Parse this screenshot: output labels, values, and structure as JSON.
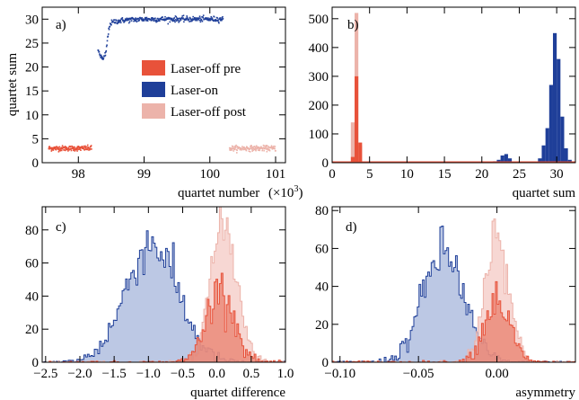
{
  "colors": {
    "laser_off_pre": "#e8523a",
    "laser_on": "#1f3f99",
    "laser_off_post": "#ecb3aa",
    "on_fill": "#9fb0d8",
    "pre_fill": "#e87b66",
    "post_fill": "#f3c6c0"
  },
  "chart_data": [
    {
      "panel": "a)",
      "type": "scatter",
      "xlabel": "quartet number",
      "xlabel_unit": "(×10",
      "xlabel_exp": "3",
      "xlabel_close": ")",
      "ylabel": "quartet sum",
      "xlim": [
        97.45,
        101.15
      ],
      "ylim": [
        0,
        32.5
      ],
      "xticks": [
        "98",
        "99",
        "100",
        "101"
      ],
      "yticks": [
        "0",
        "5",
        "10",
        "15",
        "20",
        "25",
        "30"
      ],
      "legend": {
        "position": "right-center",
        "entries": [
          "Laser-off pre",
          "Laser-on",
          "Laser-off post"
        ]
      },
      "series": [
        {
          "name": "Laser-off pre",
          "color_key": "laser_off_pre",
          "x_range": [
            97.55,
            98.2
          ],
          "y_mean": 3.0,
          "y_spread": 0.6
        },
        {
          "name": "Laser-on",
          "color_key": "laser_on",
          "x": [
            98.3,
            98.35,
            98.38,
            98.42,
            98.45,
            98.48,
            98.55,
            98.7,
            99.0,
            99.5,
            100.0,
            100.2
          ],
          "y": [
            23.5,
            22.0,
            21.5,
            23.0,
            26.5,
            29.0,
            29.5,
            29.8,
            30.0,
            30.0,
            30.0,
            30.0
          ],
          "y_spread": 0.8
        },
        {
          "name": "Laser-off post",
          "color_key": "laser_off_post",
          "x_range": [
            100.3,
            101.0
          ],
          "y_mean": 3.0,
          "y_spread": 0.6
        }
      ]
    },
    {
      "panel": "b)",
      "type": "bar",
      "xlabel": "quartet sum",
      "ylabel": "",
      "xlim": [
        0,
        32.5
      ],
      "ylim": [
        0,
        540
      ],
      "xticks": [
        "0",
        "5",
        "10",
        "15",
        "20",
        "25",
        "30"
      ],
      "yticks": [
        "0",
        "100",
        "200",
        "300",
        "400",
        "500"
      ],
      "bin_width": 0.5,
      "series": [
        {
          "name": "Laser-off post",
          "color_key": "laser_off_post",
          "bins": [
            [
              2.5,
              140
            ],
            [
              3.0,
              520
            ],
            [
              3.5,
              60
            ]
          ]
        },
        {
          "name": "Laser-off pre",
          "color_key": "laser_off_pre",
          "bins": [
            [
              2.5,
              20
            ],
            [
              3.0,
              300
            ],
            [
              3.5,
              70
            ]
          ]
        },
        {
          "name": "Laser-on",
          "color_key": "laser_on",
          "bins": [
            [
              21.5,
              5
            ],
            [
              22.0,
              10
            ],
            [
              22.5,
              25
            ],
            [
              23.0,
              30
            ],
            [
              23.5,
              15
            ],
            [
              24.0,
              4
            ],
            [
              27.5,
              15
            ],
            [
              28.0,
              60
            ],
            [
              28.5,
              120
            ],
            [
              29.0,
              270
            ],
            [
              29.5,
              450
            ],
            [
              30.0,
              360
            ],
            [
              30.5,
              160
            ],
            [
              31.0,
              50
            ],
            [
              31.5,
              10
            ]
          ]
        }
      ]
    },
    {
      "panel": "c)",
      "type": "area",
      "xlabel": "quartet difference",
      "ylabel": "",
      "xlim": [
        -2.55,
        1.0
      ],
      "ylim": [
        0,
        94
      ],
      "xticks": [
        "−2.5",
        "−2.0",
        "−1.5",
        "−1.0",
        "−0.5",
        "0.0",
        "0.5",
        "1.0"
      ],
      "yticks": [
        "0",
        "20",
        "40",
        "60",
        "80"
      ],
      "series": [
        {
          "name": "Laser-on",
          "color_key": "laser_on",
          "fill_key": "on_fill",
          "mean": -0.95,
          "sigma": 0.38,
          "peak": 72
        },
        {
          "name": "Laser-off post",
          "color_key": "laser_off_post",
          "fill_key": "post_fill",
          "mean": 0.1,
          "sigma": 0.2,
          "peak": 82
        },
        {
          "name": "Laser-off pre",
          "color_key": "laser_off_pre",
          "fill_key": "pre_fill",
          "mean": 0.05,
          "sigma": 0.2,
          "peak": 45
        }
      ]
    },
    {
      "panel": "d)",
      "type": "area",
      "xlabel": "asymmetry",
      "ylabel": "",
      "xlim": [
        -0.105,
        0.05
      ],
      "ylim": [
        0,
        82
      ],
      "xticks": [
        "−0.10",
        "−0.05",
        "0.00"
      ],
      "yticks": [
        "0",
        "20",
        "40",
        "60",
        "80"
      ],
      "series": [
        {
          "name": "Laser-on",
          "color_key": "laser_on",
          "fill_key": "on_fill",
          "mean": -0.034,
          "sigma": 0.013,
          "peak": 58
        },
        {
          "name": "Laser-off post",
          "color_key": "laser_off_post",
          "fill_key": "post_fill",
          "mean": 0.0,
          "sigma": 0.0075,
          "peak": 70
        },
        {
          "name": "Laser-off pre",
          "color_key": "laser_off_pre",
          "fill_key": "pre_fill",
          "mean": 0.0,
          "sigma": 0.008,
          "peak": 33
        }
      ]
    }
  ]
}
